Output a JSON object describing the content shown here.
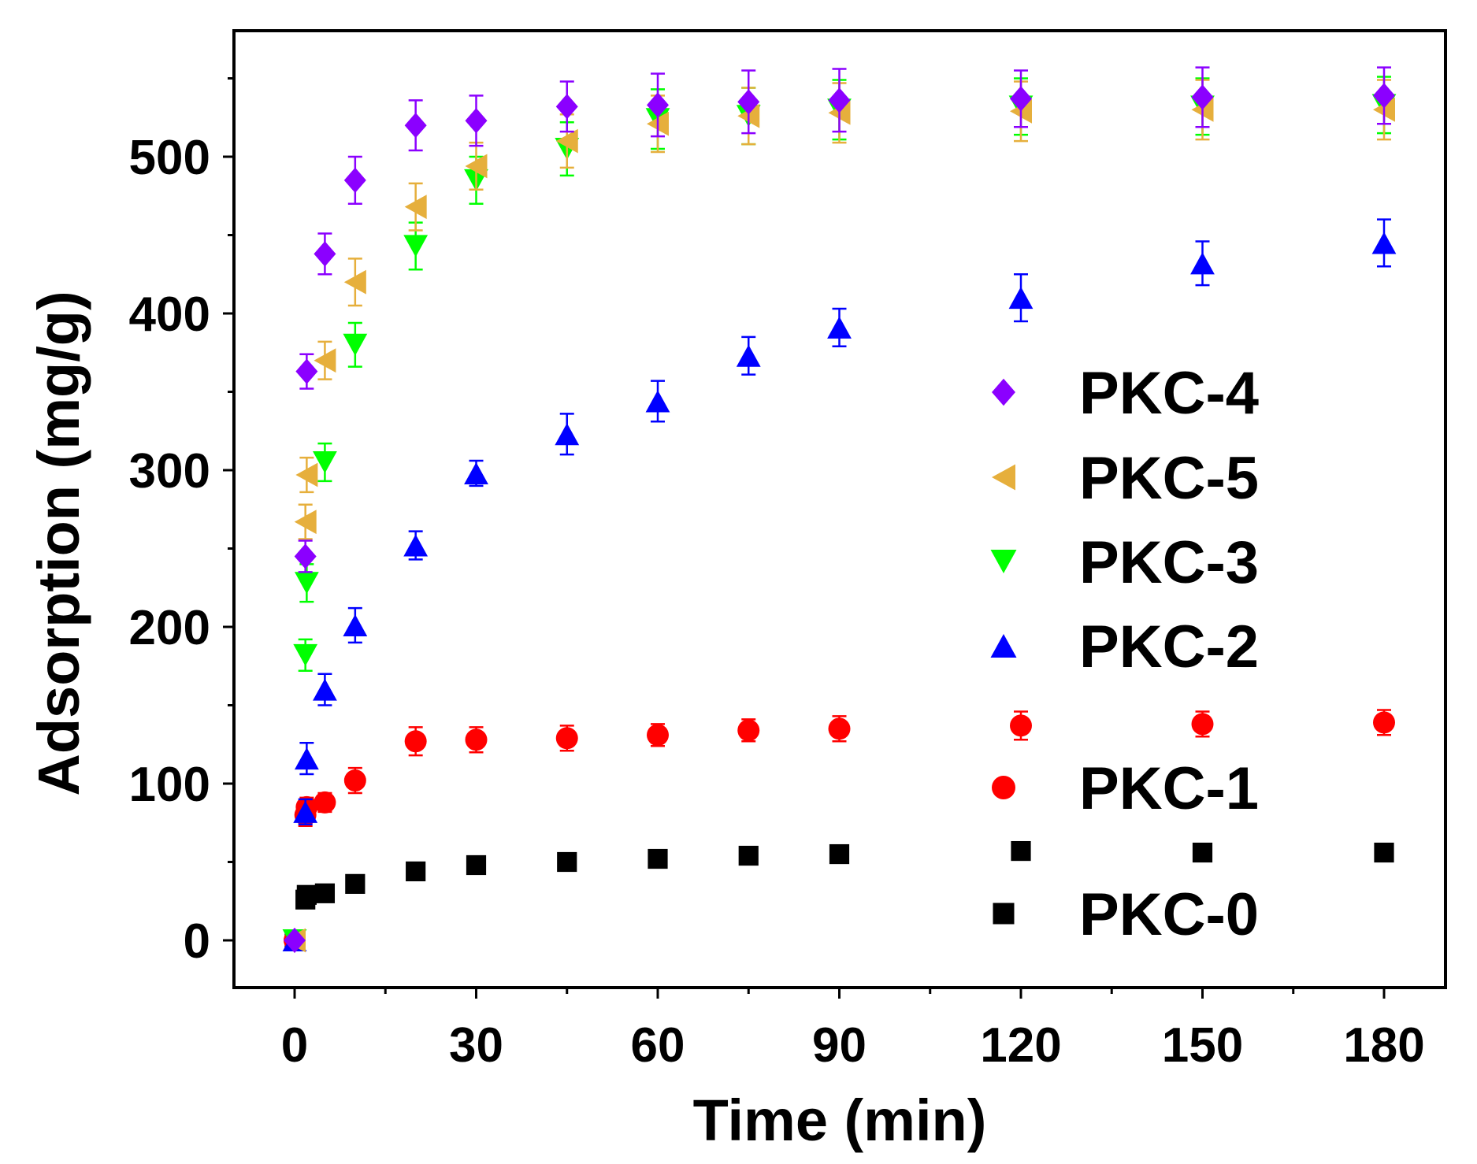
{
  "chart_data": {
    "type": "scatter",
    "title": "",
    "xlabel": "Time (min)",
    "ylabel": "Adsorption (mg/g)",
    "xlim": [
      -10,
      190
    ],
    "ylim": [
      -30,
      580
    ],
    "xticks": [
      0,
      30,
      60,
      90,
      120,
      150,
      180
    ],
    "yticks": [
      0,
      100,
      200,
      300,
      400,
      500
    ],
    "grid": false,
    "legend_position": "right",
    "x": [
      0,
      1,
      2,
      5,
      10,
      20,
      30,
      45,
      60,
      75,
      90,
      120,
      150,
      180
    ],
    "series": [
      {
        "name": "PKC-4",
        "marker": "diamond",
        "color": "#8B00FF",
        "values": [
          0,
          245,
          363,
          438,
          485,
          520,
          523,
          532,
          533,
          535,
          536,
          537,
          538,
          539
        ],
        "errors": [
          0,
          10,
          11,
          13,
          15,
          16,
          16,
          16,
          20,
          20,
          20,
          18,
          19,
          18
        ]
      },
      {
        "name": "PKC-5",
        "marker": "triangle-left",
        "color": "#E6AF3C",
        "values": [
          0,
          267,
          297,
          370,
          420,
          468,
          494,
          510,
          521,
          526,
          528,
          529,
          530,
          530
        ],
        "errors": [
          0,
          11,
          11,
          12,
          15,
          15,
          15,
          17,
          18,
          18,
          19,
          19,
          19,
          19
        ]
      },
      {
        "name": "PKC-3",
        "marker": "triangle-down",
        "color": "#00FF00",
        "values": [
          0,
          182,
          228,
          305,
          380,
          443,
          485,
          505,
          524,
          526,
          530,
          532,
          532,
          533
        ],
        "errors": [
          0,
          10,
          12,
          12,
          14,
          15,
          15,
          17,
          19,
          18,
          19,
          18,
          18,
          18
        ]
      },
      {
        "name": "PKC-2",
        "marker": "triangle-up",
        "color": "#0000FF",
        "values": [
          0,
          82,
          116,
          160,
          201,
          252,
          298,
          323,
          344,
          373,
          391,
          410,
          432,
          445
        ],
        "errors": [
          0,
          8,
          10,
          10,
          11,
          9,
          8,
          13,
          13,
          12,
          12,
          15,
          14,
          15
        ]
      },
      {
        "name": "PKC-1",
        "marker": "circle",
        "color": "#FF0000",
        "values": [
          0,
          80,
          85,
          88,
          102,
          127,
          128,
          129,
          131,
          134,
          135,
          137,
          138,
          139
        ],
        "errors": [
          0,
          7,
          6,
          6,
          8,
          9,
          8,
          8,
          7,
          7,
          8,
          9,
          8,
          8
        ]
      },
      {
        "name": "PKC-0",
        "marker": "square",
        "color": "#000000",
        "values": [
          0,
          26,
          29,
          30,
          36,
          44,
          48,
          50,
          52,
          54,
          55,
          57,
          56,
          56
        ],
        "errors": [
          0,
          2,
          2,
          2,
          2,
          2,
          2,
          2,
          2,
          2,
          2,
          2,
          2,
          2
        ]
      }
    ],
    "legend_order": [
      "PKC-4",
      "PKC-5",
      "PKC-3",
      "PKC-2",
      "PKC-1",
      "PKC-0"
    ]
  }
}
